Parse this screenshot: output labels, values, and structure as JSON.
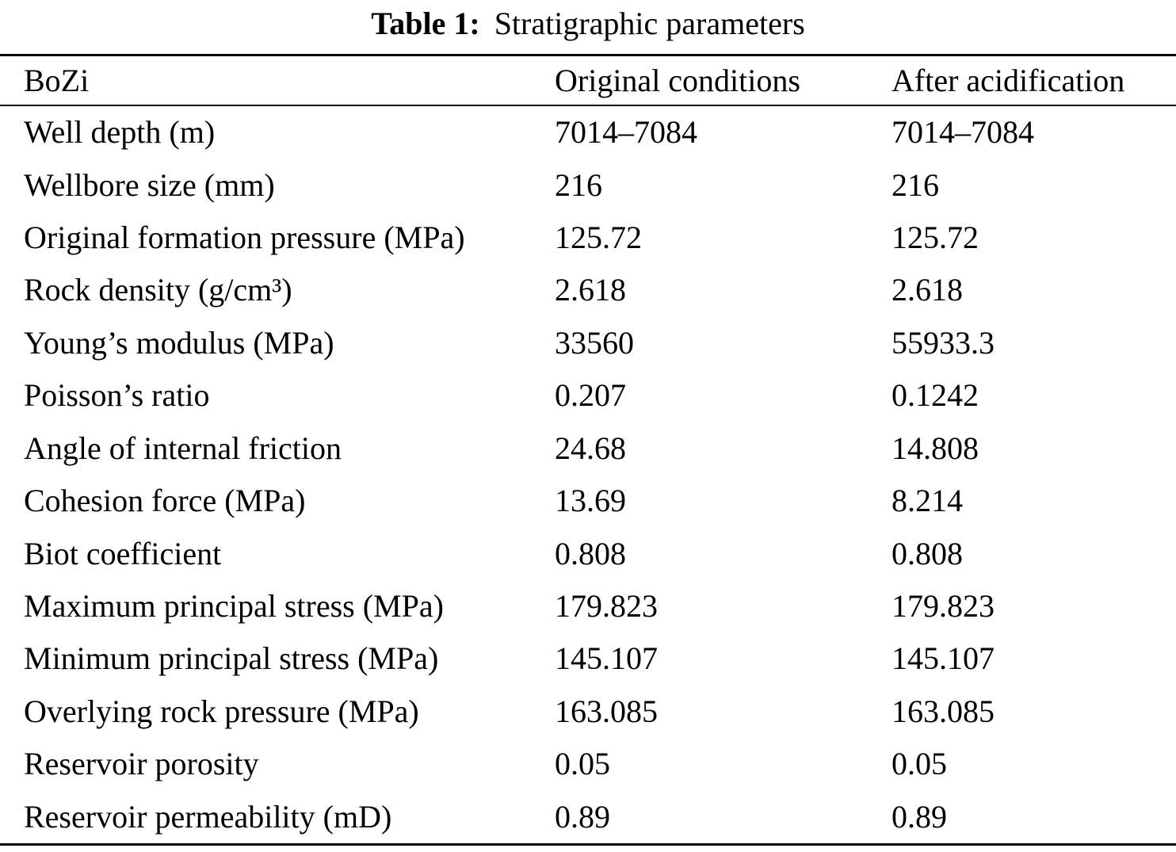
{
  "caption": {
    "label": "Table 1:",
    "text": "Stratigraphic parameters"
  },
  "table": {
    "headers": [
      "BoZi",
      "Original conditions",
      "After acidification"
    ],
    "rows": [
      {
        "parameter": "Well depth (m)",
        "original": "7014–7084",
        "acidified": "7014–7084"
      },
      {
        "parameter": "Wellbore size (mm)",
        "original": "216",
        "acidified": "216"
      },
      {
        "parameter": "Original formation pressure (MPa)",
        "original": "125.72",
        "acidified": "125.72"
      },
      {
        "parameter": "Rock density (g/cm³)",
        "original": "2.618",
        "acidified": "2.618"
      },
      {
        "parameter": "Young’s modulus (MPa)",
        "original": "33560",
        "acidified": "55933.3"
      },
      {
        "parameter": "Poisson’s ratio",
        "original": "0.207",
        "acidified": "0.1242"
      },
      {
        "parameter": "Angle of internal friction",
        "original": "24.68",
        "acidified": "14.808"
      },
      {
        "parameter": "Cohesion force (MPa)",
        "original": "13.69",
        "acidified": "8.214"
      },
      {
        "parameter": "Biot coefficient",
        "original": "0.808",
        "acidified": "0.808"
      },
      {
        "parameter": "Maximum principal stress (MPa)",
        "original": "179.823",
        "acidified": "179.823"
      },
      {
        "parameter": "Minimum principal stress (MPa)",
        "original": "145.107",
        "acidified": "145.107"
      },
      {
        "parameter": "Overlying rock pressure (MPa)",
        "original": "163.085",
        "acidified": "163.085"
      },
      {
        "parameter": "Reservoir porosity",
        "original": "0.05",
        "acidified": "0.05"
      },
      {
        "parameter": "Reservoir permeability (mD)",
        "original": "0.89",
        "acidified": "0.89"
      }
    ]
  },
  "colors": {
    "text": "#000000",
    "background": "#ffffff",
    "rule": "#000000"
  }
}
